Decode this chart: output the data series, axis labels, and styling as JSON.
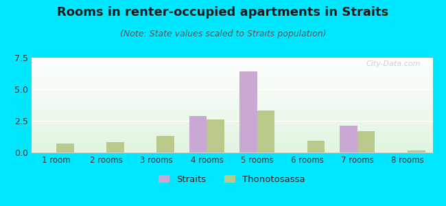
{
  "title": "Rooms in renter-occupied apartments in Straits",
  "subtitle": "(Note: State values scaled to Straits population)",
  "categories": [
    "1 room",
    "2 rooms",
    "3 rooms",
    "4 rooms",
    "5 rooms",
    "6 rooms",
    "7 rooms",
    "8 rooms"
  ],
  "straits_values": [
    0,
    0,
    0,
    2.9,
    6.4,
    0,
    2.1,
    0
  ],
  "thonotosassa_values": [
    0.7,
    0.8,
    1.3,
    2.6,
    3.3,
    0.9,
    1.7,
    0.15
  ],
  "straits_color": "#c9a8d4",
  "thonotosassa_color": "#b8c98a",
  "ylim": [
    0,
    7.5
  ],
  "yticks": [
    0,
    2.5,
    5,
    7.5
  ],
  "outer_background": "#00e8ff",
  "title_fontsize": 13,
  "subtitle_fontsize": 9,
  "legend_labels": [
    "Straits",
    "Thonotosassa"
  ],
  "bar_width": 0.35,
  "watermark": "City-Data.com"
}
